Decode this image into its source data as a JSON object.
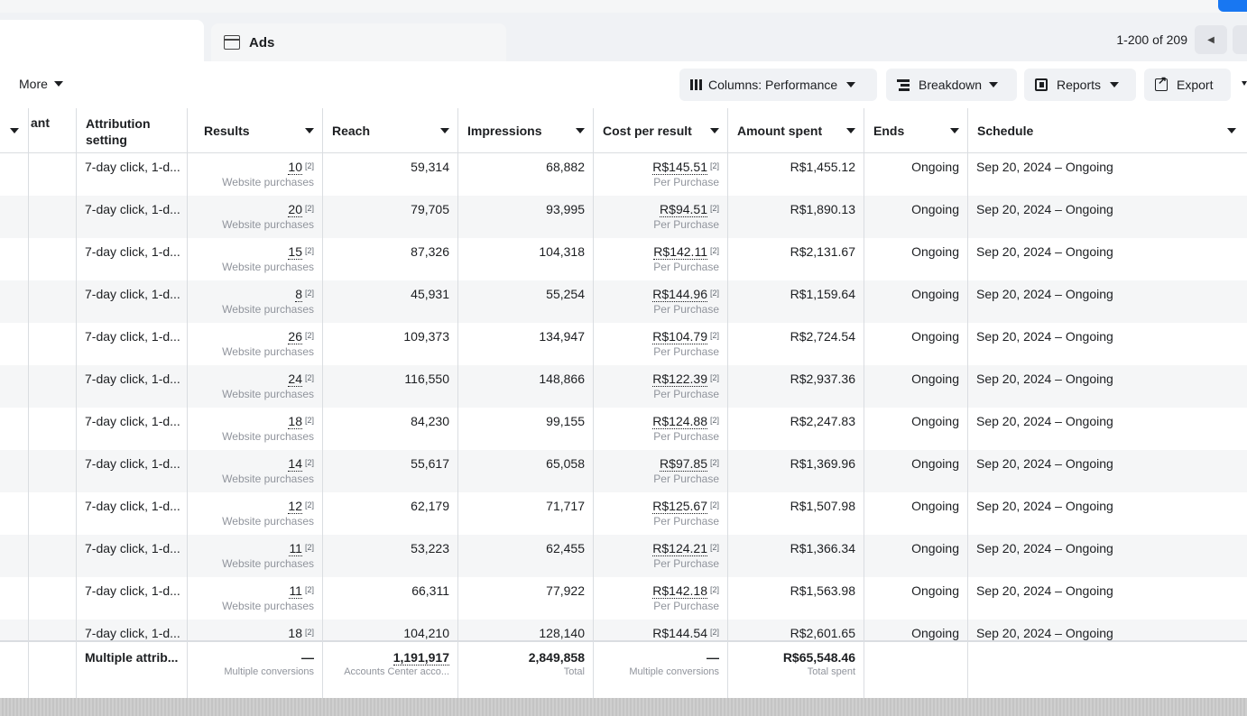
{
  "tabs": {
    "ads_label": "Ads"
  },
  "pager": {
    "text": "1-200 of 209"
  },
  "toolbar": {
    "more": "More",
    "columns": "Columns: Performance",
    "breakdown": "Breakdown",
    "reports": "Reports",
    "export": "Export"
  },
  "headers": {
    "partial": "ant",
    "attribution": "Attribution setting",
    "results": "Results",
    "reach": "Reach",
    "impressions": "Impressions",
    "cost": "Cost per result",
    "amount": "Amount spent",
    "ends": "Ends",
    "schedule": "Schedule"
  },
  "note_mark": "[2]",
  "results_sub": "Website purchases",
  "cost_sub": "Per Purchase",
  "rows": [
    {
      "attribution": "7-day click, 1-d...",
      "results": "10",
      "reach": "59,314",
      "impressions": "68,882",
      "cost": "R$145.51",
      "amount": "R$1,455.12",
      "ends": "Ongoing",
      "schedule": "Sep 20, 2024 – Ongoing"
    },
    {
      "attribution": "7-day click, 1-d...",
      "results": "20",
      "reach": "79,705",
      "impressions": "93,995",
      "cost": "R$94.51",
      "amount": "R$1,890.13",
      "ends": "Ongoing",
      "schedule": "Sep 20, 2024 – Ongoing"
    },
    {
      "attribution": "7-day click, 1-d...",
      "results": "15",
      "reach": "87,326",
      "impressions": "104,318",
      "cost": "R$142.11",
      "amount": "R$2,131.67",
      "ends": "Ongoing",
      "schedule": "Sep 20, 2024 – Ongoing"
    },
    {
      "attribution": "7-day click, 1-d...",
      "results": "8",
      "reach": "45,931",
      "impressions": "55,254",
      "cost": "R$144.96",
      "amount": "R$1,159.64",
      "ends": "Ongoing",
      "schedule": "Sep 20, 2024 – Ongoing"
    },
    {
      "attribution": "7-day click, 1-d...",
      "results": "26",
      "reach": "109,373",
      "impressions": "134,947",
      "cost": "R$104.79",
      "amount": "R$2,724.54",
      "ends": "Ongoing",
      "schedule": "Sep 20, 2024 – Ongoing"
    },
    {
      "attribution": "7-day click, 1-d...",
      "results": "24",
      "reach": "116,550",
      "impressions": "148,866",
      "cost": "R$122.39",
      "amount": "R$2,937.36",
      "ends": "Ongoing",
      "schedule": "Sep 20, 2024 – Ongoing"
    },
    {
      "attribution": "7-day click, 1-d...",
      "results": "18",
      "reach": "84,230",
      "impressions": "99,155",
      "cost": "R$124.88",
      "amount": "R$2,247.83",
      "ends": "Ongoing",
      "schedule": "Sep 20, 2024 – Ongoing"
    },
    {
      "attribution": "7-day click, 1-d...",
      "results": "14",
      "reach": "55,617",
      "impressions": "65,058",
      "cost": "R$97.85",
      "amount": "R$1,369.96",
      "ends": "Ongoing",
      "schedule": "Sep 20, 2024 – Ongoing"
    },
    {
      "attribution": "7-day click, 1-d...",
      "results": "12",
      "reach": "62,179",
      "impressions": "71,717",
      "cost": "R$125.67",
      "amount": "R$1,507.98",
      "ends": "Ongoing",
      "schedule": "Sep 20, 2024 – Ongoing"
    },
    {
      "attribution": "7-day click, 1-d...",
      "results": "11",
      "reach": "53,223",
      "impressions": "62,455",
      "cost": "R$124.21",
      "amount": "R$1,366.34",
      "ends": "Ongoing",
      "schedule": "Sep 20, 2024 – Ongoing"
    },
    {
      "attribution": "7-day click, 1-d...",
      "results": "11",
      "reach": "66,311",
      "impressions": "77,922",
      "cost": "R$142.18",
      "amount": "R$1,563.98",
      "ends": "Ongoing",
      "schedule": "Sep 20, 2024 – Ongoing"
    },
    {
      "attribution": "7-day click, 1-d...",
      "results": "18",
      "reach": "104,210",
      "impressions": "128,140",
      "cost": "R$144.54",
      "amount": "R$2,601.65",
      "ends": "Ongoing",
      "schedule": "Sep 20, 2024 – Ongoing"
    }
  ],
  "summary": {
    "attribution": "Multiple attrib...",
    "results": "—",
    "results_sub": "Multiple conversions",
    "reach": "1,191,917",
    "reach_sub": "Accounts Center acco...",
    "impressions": "2,849,858",
    "impressions_sub": "Total",
    "cost": "—",
    "cost_sub": "Multiple conversions",
    "amount": "R$65,548.46",
    "amount_sub": "Total spent"
  },
  "colors": {
    "accent": "#1877f2",
    "alt_row": "#f5f6f7",
    "border": "#dadde1"
  }
}
